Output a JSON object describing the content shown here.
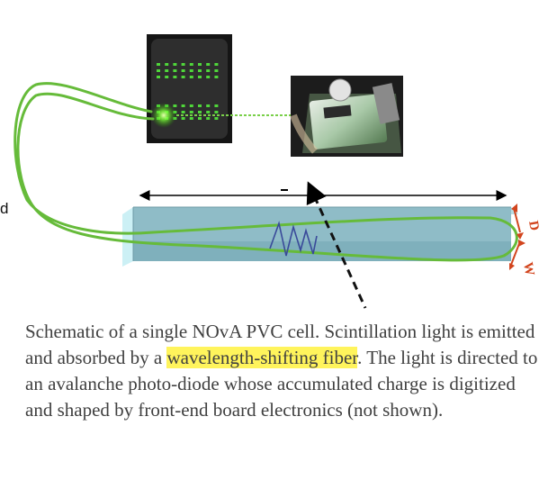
{
  "colors": {
    "fiber": "#66bb3a",
    "bar_face": "#9ac3cc",
    "bar_top": "#b8dde4",
    "bar_side": "#bfe7ee",
    "arrow": "#d2451e",
    "signal": "#3a4a9a",
    "highlight": "#fff45c",
    "caption_text": "#404040"
  },
  "labels": {
    "depth": "D",
    "width": "W",
    "edge_letter": "d"
  },
  "caption": {
    "before": "Schematic of a single NOvA PVC cell. Scintillation light is emitted and absorbed by a ",
    "highlight": "wavelength-shifting fiber",
    "after": ". The light is directed to an avalanche photo-diode whose accumulated charge is digitized and shaped by front-end board electronics (not shown)."
  }
}
